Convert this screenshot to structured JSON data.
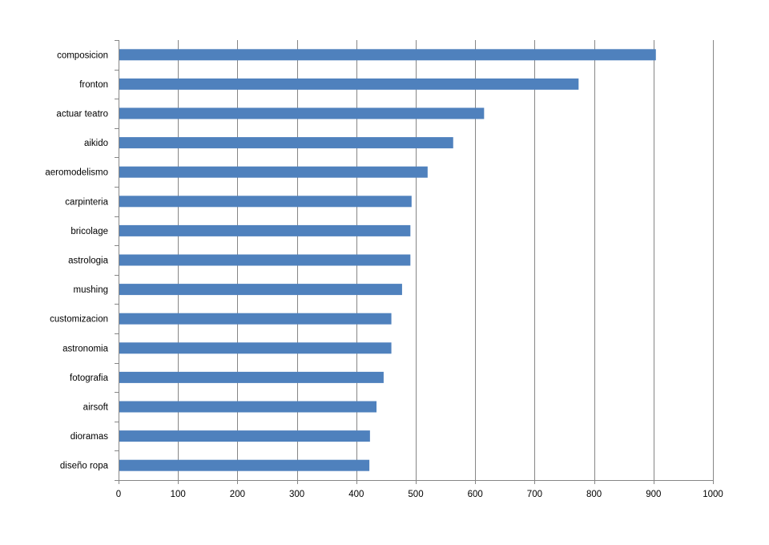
{
  "chart_data": {
    "type": "bar",
    "orientation": "horizontal",
    "title": "",
    "xlabel": "",
    "ylabel": "",
    "categories": [
      "composicion",
      "fronton",
      "actuar teatro",
      "aikido",
      "aeromodelismo",
      "carpinteria",
      "bricolage",
      "astrologia",
      "mushing",
      "customizacion",
      "astronomia",
      "fotografia",
      "airsoft",
      "dioramas",
      "diseño ropa"
    ],
    "values": [
      904,
      774,
      615,
      563,
      520,
      493,
      491,
      491,
      477,
      459,
      459,
      446,
      434,
      423,
      422
    ],
    "xlim": [
      0,
      1000
    ],
    "x_ticks": [
      0,
      100,
      200,
      300,
      400,
      500,
      600,
      700,
      800,
      900,
      1000
    ],
    "grid": "vertical",
    "legend": "none",
    "colors": {
      "bar": "#4F81BD",
      "grid": "#868686",
      "axis": "#868686"
    }
  }
}
